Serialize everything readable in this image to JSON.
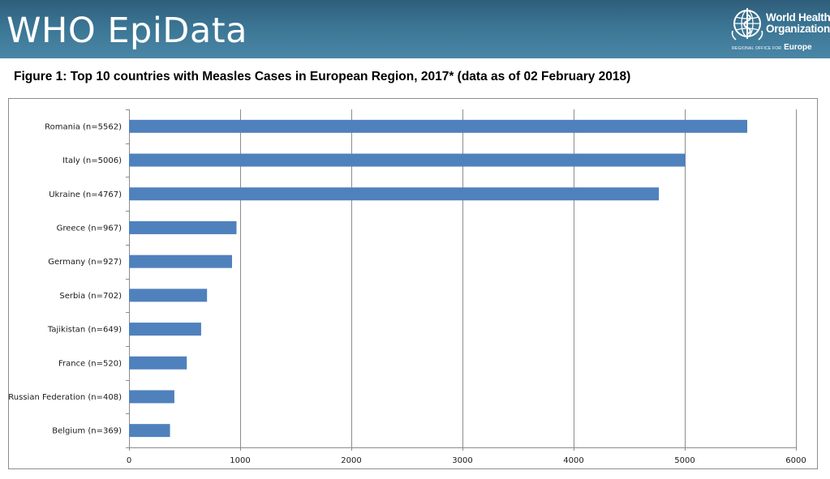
{
  "header": {
    "title": "WHO EpiData",
    "logo": {
      "line1": "World Health",
      "line2": "Organization",
      "sub_small": "REGIONAL OFFICE FOR",
      "sub_big": "Europe",
      "icon": "who-emblem-icon"
    },
    "colors": {
      "banner": "#3b7594",
      "text": "#ffffff"
    }
  },
  "figure_title": "Figure 1: Top 10 countries with Measles Cases in European Region, 2017* (data as of 02 February 2018)",
  "chart_data": {
    "type": "bar",
    "orientation": "horizontal",
    "categories": [
      "Romania (n=5562)",
      "Italy (n=5006)",
      "Ukraine (n=4767)",
      "Greece (n=967)",
      "Germany (n=927)",
      "Serbia (n=702)",
      "Tajikistan (n=649)",
      "France (n=520)",
      "Russian Federation (n=408)",
      "Belgium (n=369)"
    ],
    "values": [
      5562,
      5006,
      4767,
      967,
      927,
      702,
      649,
      520,
      408,
      369
    ],
    "xlim": [
      0,
      6000
    ],
    "xticks": [
      "0",
      "1000",
      "2000",
      "3000",
      "4000",
      "5000",
      "6000"
    ],
    "xtick_values": [
      0,
      1000,
      2000,
      3000,
      4000,
      5000,
      6000
    ],
    "grid": "vertical",
    "legend": "none",
    "bar_color": "#4f81bd",
    "grid_color": "#8c8c8c"
  }
}
